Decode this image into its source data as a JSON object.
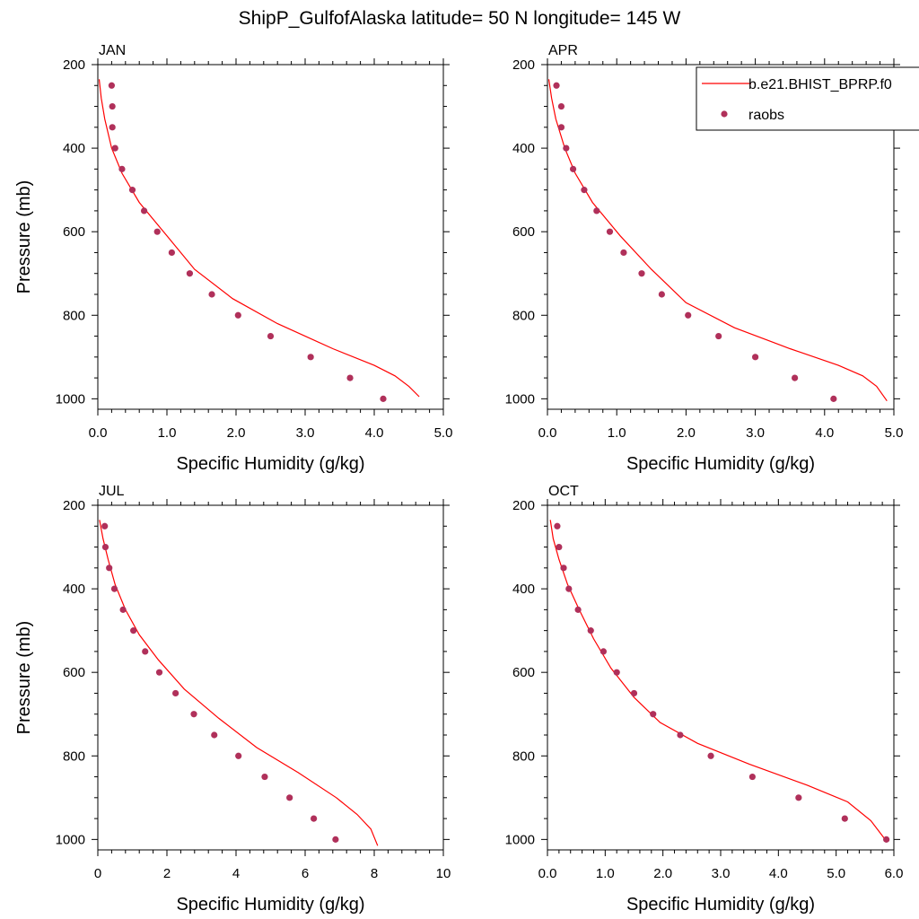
{
  "title": "ShipP_GulfofAlaska  latitude= 50 N longitude= 145 W",
  "colors": {
    "model_line": "#ff0000",
    "raobs_marker": "#b0305a",
    "axis": "#000000"
  },
  "legend": {
    "model_label": "b.e21.BHIST_BPRP.f0",
    "obs_label": "raobs"
  },
  "chart_data": [
    {
      "type": "line",
      "title": "JAN",
      "xlabel": "Specific Humidity (g/kg)",
      "ylabel": "Pressure (mb)",
      "xlim": [
        0,
        5
      ],
      "ylim": [
        200,
        1025
      ],
      "y_inverted": true,
      "xticks": [
        "0.0",
        "1.0",
        "2.0",
        "3.0",
        "4.0",
        "5.0"
      ],
      "yticks": [
        "200",
        "400",
        "600",
        "800",
        "1000"
      ],
      "series": [
        {
          "name": "b.e21.BHIST_BPRP.f0",
          "kind": "line",
          "x": [
            0.02,
            0.05,
            0.1,
            0.2,
            0.35,
            0.6,
            1.0,
            1.4,
            1.95,
            2.6,
            3.4,
            4.0,
            4.3,
            4.5,
            4.65
          ],
          "y": [
            235,
            280,
            330,
            400,
            460,
            530,
            610,
            690,
            760,
            820,
            880,
            920,
            945,
            970,
            995
          ]
        },
        {
          "name": "raobs",
          "kind": "scatter",
          "x": [
            0.2,
            0.21,
            0.21,
            0.25,
            0.35,
            0.5,
            0.67,
            0.86,
            1.07,
            1.33,
            1.65,
            2.03,
            2.5,
            3.08,
            3.65,
            4.13
          ],
          "y": [
            250,
            300,
            350,
            400,
            450,
            500,
            550,
            600,
            650,
            700,
            750,
            800,
            850,
            900,
            950,
            1000
          ]
        }
      ]
    },
    {
      "type": "line",
      "title": "APR",
      "xlabel": "Specific Humidity (g/kg)",
      "ylabel": "",
      "xlim": [
        0,
        5
      ],
      "ylim": [
        200,
        1025
      ],
      "y_inverted": true,
      "xticks": [
        "0.0",
        "1.0",
        "2.0",
        "3.0",
        "4.0",
        "5.0"
      ],
      "yticks": [
        "200",
        "400",
        "600",
        "800",
        "1000"
      ],
      "series": [
        {
          "name": "b.e21.BHIST_BPRP.f0",
          "kind": "line",
          "x": [
            0.02,
            0.06,
            0.12,
            0.25,
            0.4,
            0.65,
            1.05,
            1.5,
            2.0,
            2.7,
            3.5,
            4.2,
            4.55,
            4.75,
            4.9
          ],
          "y": [
            235,
            280,
            330,
            400,
            460,
            530,
            610,
            690,
            770,
            830,
            880,
            920,
            945,
            970,
            1005
          ]
        },
        {
          "name": "raobs",
          "kind": "scatter",
          "x": [
            0.13,
            0.2,
            0.2,
            0.27,
            0.37,
            0.53,
            0.71,
            0.9,
            1.1,
            1.36,
            1.65,
            2.03,
            2.47,
            3.0,
            3.57,
            4.13
          ],
          "y": [
            250,
            300,
            350,
            400,
            450,
            500,
            550,
            600,
            650,
            700,
            750,
            800,
            850,
            900,
            950,
            1000
          ]
        }
      ]
    },
    {
      "type": "line",
      "title": "JUL",
      "xlabel": "Specific Humidity (g/kg)",
      "ylabel": "Pressure (mb)",
      "xlim": [
        0,
        10
      ],
      "ylim": [
        200,
        1025
      ],
      "y_inverted": true,
      "xticks": [
        "0",
        "2",
        "4",
        "6",
        "8",
        "10"
      ],
      "yticks": [
        "200",
        "400",
        "600",
        "800",
        "1000"
      ],
      "series": [
        {
          "name": "b.e21.BHIST_BPRP.f0",
          "kind": "line",
          "x": [
            0.05,
            0.15,
            0.3,
            0.5,
            0.8,
            1.2,
            1.75,
            2.5,
            3.5,
            4.6,
            5.8,
            6.9,
            7.5,
            7.9,
            8.1
          ],
          "y": [
            235,
            280,
            330,
            390,
            450,
            510,
            570,
            640,
            710,
            780,
            840,
            900,
            940,
            975,
            1015
          ]
        },
        {
          "name": "raobs",
          "kind": "scatter",
          "x": [
            0.2,
            0.22,
            0.33,
            0.48,
            0.73,
            1.03,
            1.37,
            1.78,
            2.25,
            2.78,
            3.37,
            4.07,
            4.83,
            5.55,
            6.25,
            6.88
          ],
          "y": [
            250,
            300,
            350,
            400,
            450,
            500,
            550,
            600,
            650,
            700,
            750,
            800,
            850,
            900,
            950,
            1000
          ]
        }
      ]
    },
    {
      "type": "line",
      "title": "OCT",
      "xlabel": "Specific Humidity (g/kg)",
      "ylabel": "",
      "xlim": [
        0,
        6
      ],
      "ylim": [
        200,
        1025
      ],
      "y_inverted": true,
      "xticks": [
        "0.0",
        "1.0",
        "2.0",
        "3.0",
        "4.0",
        "5.0",
        "6.0"
      ],
      "yticks": [
        "200",
        "400",
        "600",
        "800",
        "1000"
      ],
      "series": [
        {
          "name": "b.e21.BHIST_BPRP.f0",
          "kind": "line",
          "x": [
            0.05,
            0.1,
            0.2,
            0.35,
            0.55,
            0.8,
            1.1,
            1.5,
            1.95,
            2.6,
            3.5,
            4.5,
            5.2,
            5.6,
            5.85
          ],
          "y": [
            235,
            280,
            330,
            390,
            450,
            520,
            590,
            660,
            720,
            770,
            820,
            870,
            910,
            955,
            1000
          ]
        },
        {
          "name": "raobs",
          "kind": "scatter",
          "x": [
            0.17,
            0.2,
            0.28,
            0.37,
            0.53,
            0.75,
            0.97,
            1.2,
            1.5,
            1.83,
            2.3,
            2.83,
            3.55,
            4.35,
            5.15,
            5.87
          ],
          "y": [
            250,
            300,
            350,
            400,
            450,
            500,
            550,
            600,
            650,
            700,
            750,
            800,
            850,
            900,
            950,
            1000
          ]
        }
      ]
    }
  ]
}
